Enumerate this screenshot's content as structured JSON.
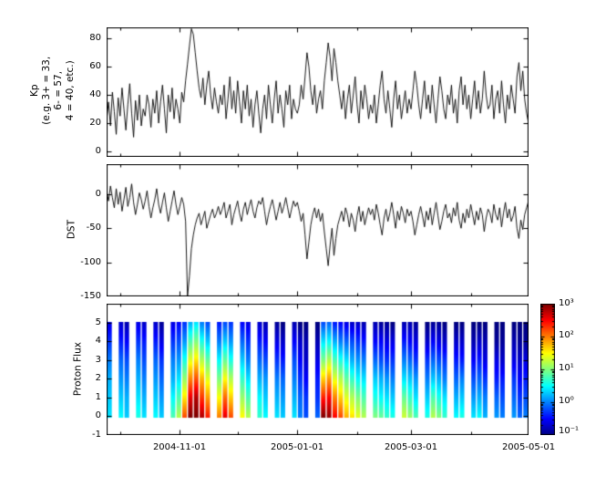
{
  "figure": {
    "background": "#ffffff",
    "line_color": "#000000",
    "frame_color": "#000000"
  },
  "chart_data": [
    {
      "type": "line",
      "title": "",
      "ylabel": "Kp\n(e.g. 3+ = 33,\n6- = 57,\n4 = 40, etc.)",
      "ylim": [
        -4,
        88
      ],
      "yticks": [
        0,
        20,
        40,
        60,
        80
      ],
      "grid": false,
      "values": [
        22,
        35,
        18,
        42,
        28,
        12,
        38,
        25,
        45,
        30,
        15,
        33,
        48,
        27,
        10,
        36,
        22,
        40,
        18,
        30,
        25,
        40,
        33,
        17,
        37,
        27,
        43,
        20,
        35,
        47,
        30,
        13,
        40,
        28,
        45,
        23,
        37,
        30,
        20,
        42,
        35,
        50,
        62,
        75,
        87,
        83,
        70,
        57,
        45,
        38,
        52,
        33,
        47,
        57,
        40,
        30,
        45,
        35,
        27,
        40,
        33,
        47,
        23,
        37,
        53,
        30,
        43,
        27,
        50,
        35,
        20,
        43,
        30,
        47,
        25,
        37,
        17,
        33,
        43,
        27,
        13,
        30,
        40,
        23,
        47,
        33,
        20,
        37,
        50,
        27,
        40,
        30,
        17,
        43,
        33,
        47,
        23,
        37,
        30,
        27,
        33,
        47,
        37,
        53,
        70,
        60,
        43,
        33,
        47,
        27,
        37,
        43,
        30,
        50,
        63,
        77,
        67,
        50,
        73,
        63,
        50,
        40,
        30,
        43,
        23,
        37,
        47,
        27,
        40,
        53,
        33,
        20,
        43,
        30,
        47,
        37,
        23,
        33,
        27,
        40,
        20,
        33,
        47,
        57,
        37,
        27,
        43,
        30,
        17,
        37,
        50,
        30,
        40,
        23,
        33,
        43,
        27,
        37,
        30,
        43,
        57,
        47,
        33,
        23,
        37,
        50,
        30,
        40,
        27,
        47,
        33,
        20,
        37,
        53,
        43,
        30,
        23,
        40,
        33,
        47,
        27,
        37,
        20,
        43,
        53,
        33,
        47,
        30,
        40,
        23,
        37,
        50,
        30,
        43,
        27,
        37,
        57,
        40,
        30,
        33,
        47,
        23,
        37,
        43,
        27,
        50,
        33,
        20,
        40,
        30,
        47,
        37,
        27,
        53,
        63,
        43,
        57,
        37,
        27,
        20
      ]
    },
    {
      "type": "line",
      "title": "",
      "ylabel": "DST",
      "ylim": [
        -150,
        44
      ],
      "yticks": [
        0,
        -50,
        -100,
        -150
      ],
      "grid": false,
      "values": [
        5,
        -10,
        12,
        -5,
        -20,
        8,
        -15,
        3,
        -25,
        -8,
        10,
        -18,
        -5,
        15,
        -12,
        -30,
        -15,
        2,
        -8,
        -22,
        -10,
        5,
        -18,
        -35,
        -20,
        -8,
        8,
        -15,
        -28,
        -12,
        2,
        -20,
        -40,
        -25,
        -10,
        5,
        -15,
        -30,
        -18,
        -5,
        -15,
        -40,
        -150,
        -120,
        -80,
        -60,
        -45,
        -35,
        -28,
        -45,
        -35,
        -25,
        -50,
        -40,
        -30,
        -22,
        -35,
        -28,
        -18,
        -30,
        -22,
        -12,
        -35,
        -25,
        -15,
        -45,
        -30,
        -20,
        -10,
        -28,
        -40,
        -22,
        -12,
        -30,
        -18,
        -8,
        -25,
        -35,
        -20,
        -10,
        -15,
        -5,
        -25,
        -45,
        -30,
        -18,
        -8,
        -22,
        -38,
        -25,
        -12,
        -28,
        -18,
        -5,
        -20,
        -35,
        -22,
        -10,
        -18,
        -12,
        -25,
        -40,
        -28,
        -60,
        -95,
        -70,
        -45,
        -30,
        -20,
        -35,
        -22,
        -40,
        -28,
        -55,
        -80,
        -105,
        -75,
        -50,
        -90,
        -65,
        -45,
        -35,
        -25,
        -40,
        -20,
        -30,
        -48,
        -28,
        -38,
        -55,
        -32,
        -18,
        -40,
        -25,
        -45,
        -32,
        -20,
        -30,
        -22,
        -38,
        -15,
        -28,
        -45,
        -60,
        -35,
        -22,
        -40,
        -28,
        -12,
        -30,
        -50,
        -25,
        -38,
        -18,
        -28,
        -42,
        -22,
        -32,
        -25,
        -40,
        -60,
        -45,
        -30,
        -18,
        -32,
        -48,
        -25,
        -38,
        -20,
        -45,
        -28,
        -12,
        -32,
        -52,
        -40,
        -25,
        -15,
        -35,
        -28,
        -42,
        -20,
        -32,
        -12,
        -38,
        -50,
        -28,
        -42,
        -22,
        -35,
        -15,
        -30,
        -45,
        -25,
        -38,
        -20,
        -30,
        -55,
        -35,
        -22,
        -28,
        -42,
        -15,
        -30,
        -38,
        -20,
        -48,
        -28,
        -12,
        -35,
        -22,
        -40,
        -32,
        -18,
        -50,
        -65,
        -38,
        -52,
        -30,
        -20,
        -10
      ]
    },
    {
      "type": "heatmap",
      "title": "",
      "ylabel": "Proton Flux",
      "ylim": [
        -1,
        6
      ],
      "yticks": [
        5,
        4,
        3,
        2,
        1,
        0,
        -1
      ],
      "y_levels": [
        0,
        1,
        2,
        3,
        4,
        5
      ],
      "value_scale": "log10_flux",
      "vmin": -1,
      "vmax": 3,
      "days_per_column": 3,
      "columns": [
        [
          0.4,
          0.3,
          0.2,
          0,
          -0.3,
          -0.6
        ],
        null,
        [
          0.5,
          0.3,
          0.1,
          -0.1,
          -0.4,
          -0.7
        ],
        [
          0.3,
          0.2,
          0,
          -0.2,
          -0.5,
          -0.8
        ],
        null,
        [
          0.6,
          0.4,
          0.2,
          0,
          -0.3,
          -0.6
        ],
        [
          0.4,
          0.2,
          0,
          -0.2,
          -0.4,
          -0.7
        ],
        null,
        [
          0.5,
          0.3,
          0.1,
          -0.1,
          -0.4,
          -0.7
        ],
        [
          0.3,
          0.1,
          -0.1,
          -0.3,
          -0.6,
          -0.9
        ],
        null,
        [
          0.8,
          0.5,
          0.2,
          0,
          -0.3,
          -0.6
        ],
        [
          1.2,
          0.8,
          0.4,
          0.1,
          -0.2,
          -0.5
        ],
        [
          2.2,
          1.6,
          1.1,
          0.6,
          0.1,
          -0.3
        ],
        [
          3,
          2.6,
          2,
          1.4,
          0.8,
          0.2
        ],
        [
          3,
          2.8,
          2.2,
          1.6,
          1,
          0.4
        ],
        [
          2.8,
          2.3,
          1.8,
          1.2,
          0.6,
          0
        ],
        [
          2.4,
          1.9,
          1.4,
          0.9,
          0.3,
          -0.2
        ],
        null,
        [
          2,
          1.5,
          1,
          0.5,
          0,
          -0.4
        ],
        [
          2.6,
          2.1,
          1.5,
          0.9,
          0.3,
          -0.2
        ],
        [
          2.2,
          1.7,
          1.2,
          0.6,
          0.1,
          -0.3
        ],
        null,
        [
          1.5,
          1.1,
          0.7,
          0.3,
          -0.1,
          -0.5
        ],
        [
          1.2,
          0.8,
          0.4,
          0,
          -0.3,
          -0.6
        ],
        null,
        [
          0.7,
          0.5,
          0.2,
          -0.1,
          -0.4,
          -0.7
        ],
        [
          0.5,
          0.3,
          0.1,
          -0.2,
          -0.5,
          -0.8
        ],
        null,
        [
          0.4,
          0.2,
          0,
          -0.3,
          -0.6,
          -0.9
        ],
        [
          0.3,
          0.1,
          -0.1,
          -0.4,
          -0.7,
          -1
        ],
        null,
        [
          0.4,
          0.2,
          0,
          -0.2,
          -0.5,
          -0.8
        ],
        [
          0,
          -0.1,
          -0.3,
          -0.5,
          -0.7,
          -1
        ],
        [
          -0.2,
          -0.3,
          -0.5,
          -0.7,
          -0.8,
          -1
        ],
        null,
        [
          -0.1,
          -0.3,
          -0.4,
          -0.6,
          -0.8,
          -1
        ],
        [
          3,
          2.4,
          1.7,
          1,
          0.4,
          -0.2
        ],
        [
          2.9,
          2.5,
          1.9,
          1.2,
          0.5,
          -0.1
        ],
        [
          2.5,
          2,
          1.4,
          0.8,
          0.2,
          -0.4
        ],
        [
          2.2,
          1.7,
          1.2,
          0.6,
          0,
          -0.5
        ],
        [
          1.8,
          1.4,
          0.9,
          0.4,
          -0.1,
          -0.6
        ],
        [
          1.6,
          1.2,
          0.7,
          0.2,
          -0.2,
          -0.7
        ],
        [
          1.4,
          1,
          0.5,
          0.1,
          -0.3,
          -0.7
        ],
        [
          1.2,
          0.8,
          0.4,
          0,
          -0.4,
          -0.8
        ],
        null,
        [
          1,
          0.6,
          0.3,
          -0.1,
          -0.5,
          -0.8
        ],
        [
          0.9,
          0.5,
          0.2,
          -0.2,
          -0.5,
          -0.9
        ],
        [
          0.7,
          0.4,
          0.1,
          -0.3,
          -0.6,
          -0.9
        ],
        [
          0.6,
          0.3,
          0,
          -0.3,
          -0.6,
          -1
        ],
        null,
        [
          1.3,
          0.9,
          0.4,
          0,
          -0.4,
          -0.8
        ],
        [
          1.1,
          0.7,
          0.3,
          -0.1,
          -0.5,
          -0.8
        ],
        [
          0.8,
          0.4,
          0.1,
          -0.3,
          -0.6,
          -0.9
        ],
        null,
        [
          0.6,
          0.3,
          0,
          -0.3,
          -0.7,
          -1
        ],
        [
          1.2,
          0.8,
          0.3,
          -0.1,
          -0.5,
          -0.9
        ],
        [
          1,
          0.6,
          0.2,
          -0.2,
          -0.6,
          -0.9
        ],
        [
          0.7,
          0.4,
          0,
          -0.3,
          -0.7,
          -1
        ],
        null,
        [
          0.5,
          0.2,
          -0.1,
          -0.4,
          -0.7,
          -1
        ],
        [
          0.6,
          0.3,
          0,
          -0.4,
          -0.7,
          -1
        ],
        null,
        [
          0.4,
          0.1,
          -0.2,
          -0.5,
          -0.8,
          -1
        ],
        [
          0.5,
          0.2,
          -0.1,
          -0.4,
          -0.7,
          -1
        ],
        [
          0.2,
          0,
          -0.3,
          -0.6,
          -0.8,
          -1
        ],
        null,
        [
          0.1,
          -0.1,
          -0.4,
          -0.6,
          -0.9,
          -1
        ],
        [
          0,
          -0.2,
          -0.4,
          -0.7,
          -0.9,
          -1
        ],
        null,
        [
          0.1,
          -0.1,
          -0.3,
          -0.6,
          -0.8,
          -1
        ],
        [
          -0.1,
          -0.3,
          -0.5,
          -0.7,
          -0.9,
          -1
        ],
        [
          0,
          -0.2,
          -0.4,
          -0.6,
          -0.9,
          -1
        ]
      ],
      "colorbar": {
        "scale": "log",
        "tick_labels": [
          "10³",
          "10²",
          "10¹",
          "10⁰",
          "10⁻¹"
        ],
        "exponents": [
          3,
          2,
          1,
          0,
          -1
        ]
      }
    }
  ],
  "x_axis": {
    "days_total": 219,
    "tick_days": [
      38,
      99,
      158,
      219
    ],
    "minor_tick_days": [
      7,
      68,
      130,
      189
    ],
    "tick_labels": [
      "2004-11-01",
      "2005-01-01",
      "2005-03-01",
      "2005-05-01"
    ]
  }
}
